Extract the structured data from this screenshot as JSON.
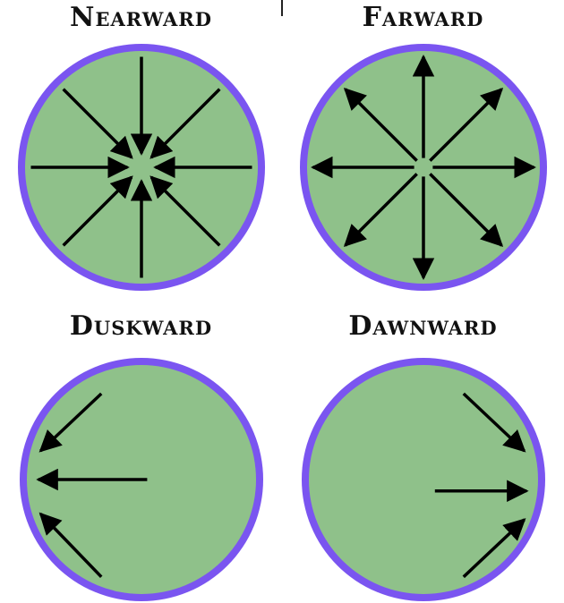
{
  "panels": [
    {
      "id": "nearward",
      "title": "Nearward",
      "arrow_direction": "inward-to-center"
    },
    {
      "id": "farward",
      "title": "Farward",
      "arrow_direction": "outward-from-center"
    },
    {
      "id": "duskward",
      "title": "Duskward",
      "arrow_direction": "toward-left-edge"
    },
    {
      "id": "dawnward",
      "title": "Dawnward",
      "arrow_direction": "toward-right-edge"
    }
  ],
  "colors": {
    "rim": "#7a55f0",
    "moon_surface": "#8fc18a",
    "highland_region": "#8a4cf2",
    "mare_region": "#55b4d6",
    "arrow": "#000000"
  }
}
